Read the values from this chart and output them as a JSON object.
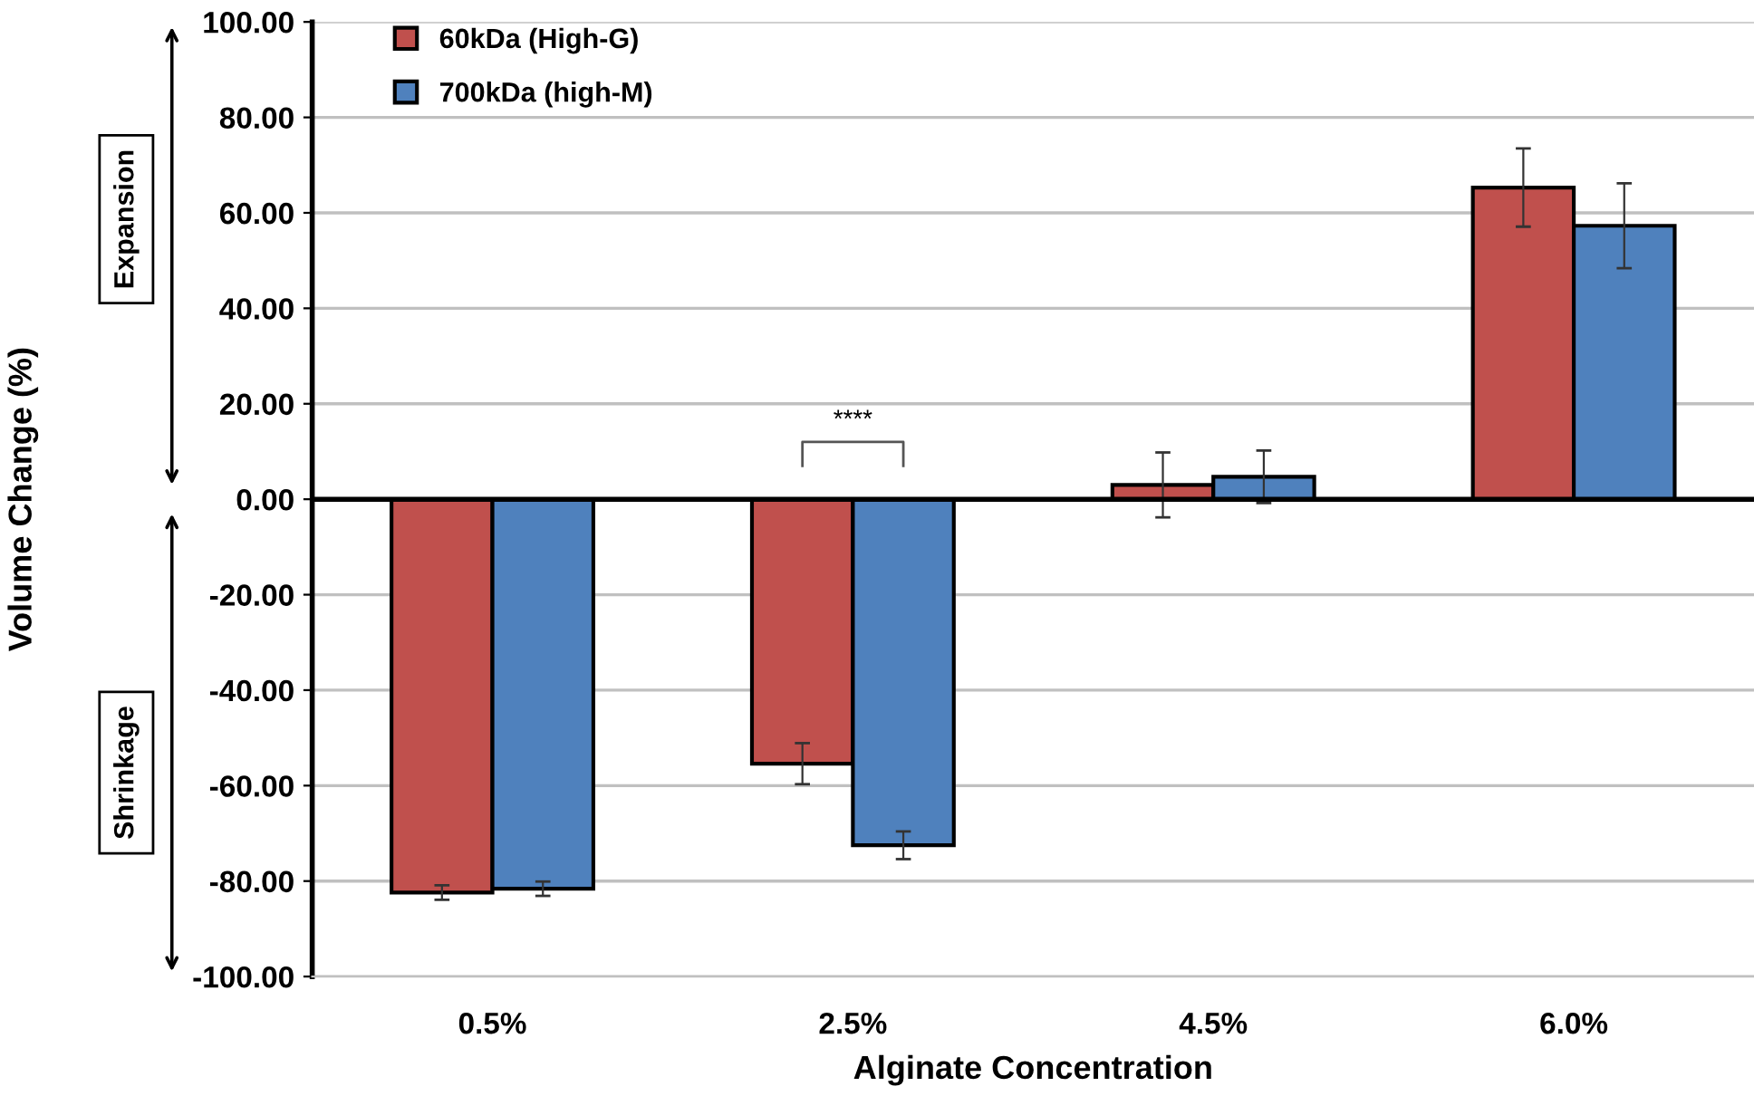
{
  "chart_data": {
    "type": "bar",
    "xlabel": "Alginate Concentration",
    "ylabel": "Volume Change (%)",
    "categories": [
      "0.5%",
      "2.5%",
      "4.5%",
      "6.0%"
    ],
    "series": [
      {
        "name": "60kDa (High-G)",
        "color": "#c0504d",
        "values": [
          -82.4,
          -55.4,
          3.0,
          65.3
        ],
        "errors": [
          1.5,
          4.3,
          6.8,
          8.2
        ]
      },
      {
        "name": "700kDa (high-M)",
        "color": "#4f81bd",
        "values": [
          -81.6,
          -72.5,
          4.7,
          57.3
        ],
        "errors": [
          1.5,
          2.9,
          5.5,
          8.9
        ]
      }
    ],
    "ylim": [
      -100,
      100
    ],
    "yticks": [
      {
        "value": -100,
        "label": "-100.00"
      },
      {
        "value": -80,
        "label": "-80.00"
      },
      {
        "value": -60,
        "label": "-60.00"
      },
      {
        "value": -40,
        "label": "-40.00"
      },
      {
        "value": -20,
        "label": "-20.00"
      },
      {
        "value": 0,
        "label": "0.00"
      },
      {
        "value": 20,
        "label": "20.00"
      },
      {
        "value": 40,
        "label": "40.00"
      },
      {
        "value": 60,
        "label": "60.00"
      },
      {
        "value": 80,
        "label": "80.00"
      },
      {
        "value": 100,
        "label": "100.00"
      }
    ],
    "grid": "y",
    "legend": "top left",
    "ref_lines": [
      {
        "axis": "y",
        "value": 0,
        "color": "#000000"
      }
    ],
    "annotations": [
      "Expansion",
      "Shrinkage",
      "****"
    ]
  }
}
